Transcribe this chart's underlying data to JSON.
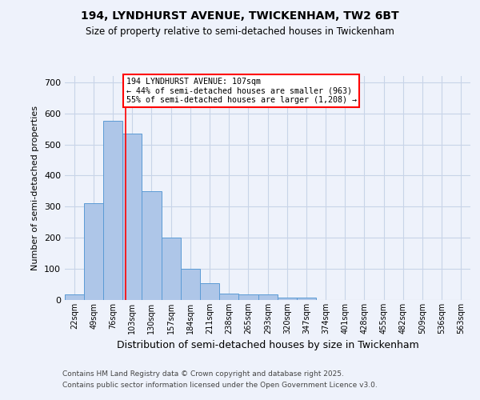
{
  "title1": "194, LYNDHURST AVENUE, TWICKENHAM, TW2 6BT",
  "title2": "Size of property relative to semi-detached houses in Twickenham",
  "xlabel": "Distribution of semi-detached houses by size in Twickenham",
  "ylabel": "Number of semi-detached properties",
  "categories": [
    "22sqm",
    "49sqm",
    "76sqm",
    "103sqm",
    "130sqm",
    "157sqm",
    "184sqm",
    "211sqm",
    "238sqm",
    "265sqm",
    "293sqm",
    "320sqm",
    "347sqm",
    "374sqm",
    "401sqm",
    "428sqm",
    "455sqm",
    "482sqm",
    "509sqm",
    "536sqm",
    "563sqm"
  ],
  "values": [
    18,
    310,
    575,
    535,
    350,
    200,
    100,
    55,
    20,
    18,
    18,
    8,
    8,
    0,
    0,
    0,
    0,
    0,
    0,
    0,
    0
  ],
  "bar_color": "#aec6e8",
  "bar_edge_color": "#5b9bd5",
  "property_line_x": 107,
  "bin_edges": [
    22,
    49,
    76,
    103,
    130,
    157,
    184,
    211,
    238,
    265,
    293,
    320,
    347,
    374,
    401,
    428,
    455,
    482,
    509,
    536,
    563,
    590
  ],
  "annotation_text": "194 LYNDHURST AVENUE: 107sqm\n← 44% of semi-detached houses are smaller (963)\n55% of semi-detached houses are larger (1,208) →",
  "footnote1": "Contains HM Land Registry data © Crown copyright and database right 2025.",
  "footnote2": "Contains public sector information licensed under the Open Government Licence v3.0.",
  "ylim": [
    0,
    720
  ],
  "yticks": [
    0,
    100,
    200,
    300,
    400,
    500,
    600,
    700
  ],
  "bg_color": "#eef2fb",
  "grid_color": "#c8d4e8"
}
